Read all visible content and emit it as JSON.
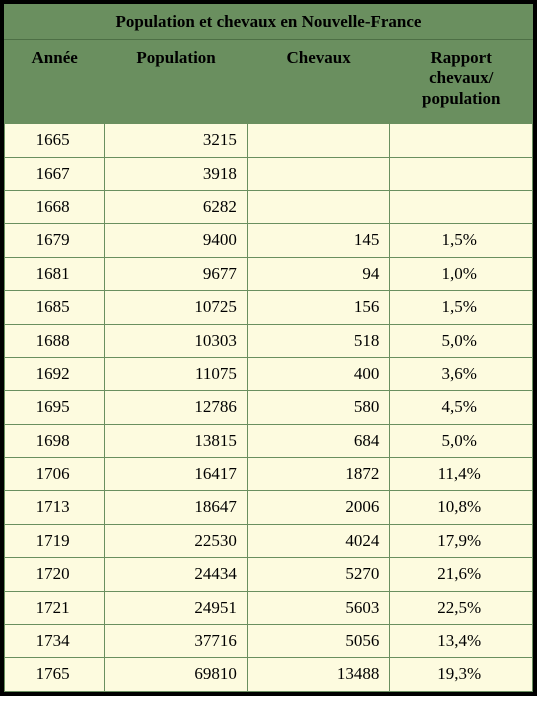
{
  "table": {
    "title": "Population et chevaux en Nouvelle-France",
    "columns": [
      "Année",
      "Population",
      "Chevaux",
      "Rapport chevaux/ population"
    ],
    "colors": {
      "header_bg": "#6a8f5f",
      "row_bg": "#fdfbdf",
      "border": "#6a8f5f",
      "outer_border": "#000000",
      "text": "#000000"
    },
    "fonts": {
      "family": "Times New Roman",
      "header_size_pt": 13,
      "cell_size_pt": 13,
      "header_weight": "bold",
      "cell_weight": "normal"
    },
    "column_alignment": [
      "center",
      "right",
      "right",
      "center"
    ],
    "rows": [
      {
        "year": "1665",
        "population": "3215",
        "chevaux": "",
        "ratio": ""
      },
      {
        "year": "1667",
        "population": "3918",
        "chevaux": "",
        "ratio": ""
      },
      {
        "year": "1668",
        "population": "6282",
        "chevaux": "",
        "ratio": ""
      },
      {
        "year": "1679",
        "population": "9400",
        "chevaux": "145",
        "ratio": "1,5%"
      },
      {
        "year": "1681",
        "population": "9677",
        "chevaux": "94",
        "ratio": "1,0%"
      },
      {
        "year": "1685",
        "population": "10725",
        "chevaux": "156",
        "ratio": "1,5%"
      },
      {
        "year": "1688",
        "population": "10303",
        "chevaux": "518",
        "ratio": "5,0%"
      },
      {
        "year": "1692",
        "population": "11075",
        "chevaux": "400",
        "ratio": "3,6%"
      },
      {
        "year": "1695",
        "population": "12786",
        "chevaux": "580",
        "ratio": "4,5%"
      },
      {
        "year": "1698",
        "population": "13815",
        "chevaux": "684",
        "ratio": "5,0%"
      },
      {
        "year": "1706",
        "population": "16417",
        "chevaux": "1872",
        "ratio": "11,4%"
      },
      {
        "year": "1713",
        "population": "18647",
        "chevaux": "2006",
        "ratio": "10,8%"
      },
      {
        "year": "1719",
        "population": "22530",
        "chevaux": "4024",
        "ratio": "17,9%"
      },
      {
        "year": "1720",
        "population": "24434",
        "chevaux": "5270",
        "ratio": "21,6%"
      },
      {
        "year": "1721",
        "population": "24951",
        "chevaux": "5603",
        "ratio": "22,5%"
      },
      {
        "year": "1734",
        "population": "37716",
        "chevaux": "5056",
        "ratio": "13,4%"
      },
      {
        "year": "1765",
        "population": "69810",
        "chevaux": "13488",
        "ratio": "19,3%"
      }
    ]
  }
}
